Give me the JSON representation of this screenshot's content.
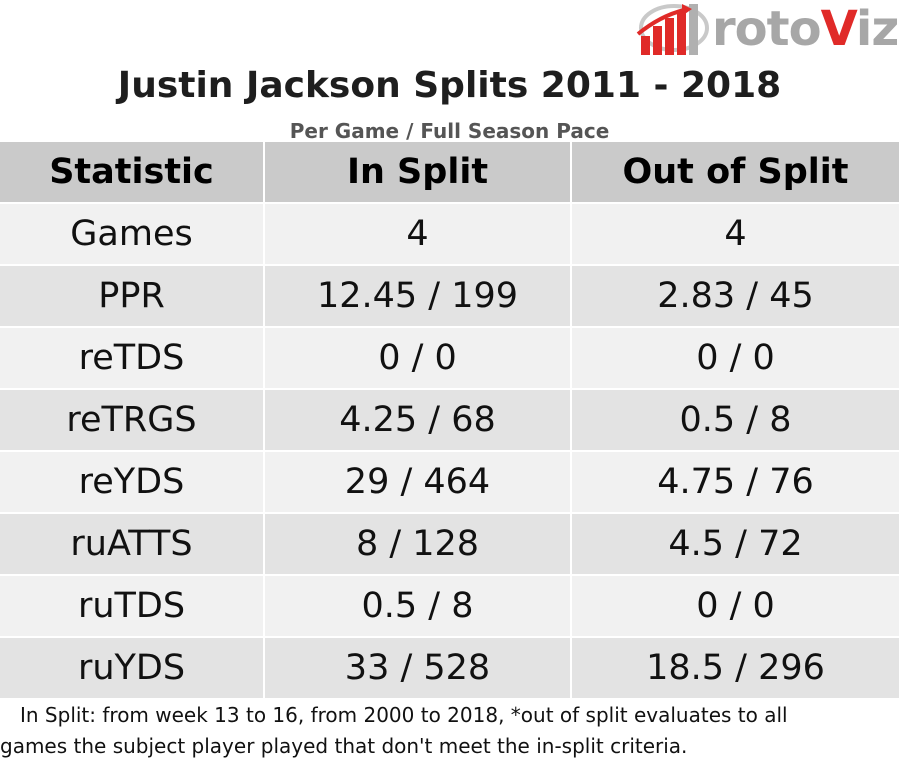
{
  "logo": {
    "text_roto": "roto",
    "text_v": "V",
    "text_iz": "iz",
    "icon": "bar-chart-arrow-icon",
    "colors": {
      "red": "#e02a28",
      "gray": "#a7a7a7"
    }
  },
  "title": "Justin Jackson Splits 2011 - 2018",
  "subtitle": "Per Game / Full Season Pace",
  "table": {
    "headers": [
      "Statistic",
      "In Split",
      "Out of Split"
    ],
    "rows": [
      [
        "Games",
        "4",
        "4"
      ],
      [
        "PPR",
        "12.45 / 199",
        "2.83 / 45"
      ],
      [
        "reTDS",
        "0 / 0",
        "0 / 0"
      ],
      [
        "reTRGS",
        "4.25 / 68",
        "0.5 / 8"
      ],
      [
        "reYDS",
        "29 / 464",
        "4.75 / 76"
      ],
      [
        "ruATTS",
        "8 / 128",
        "4.5 / 72"
      ],
      [
        "ruTDS",
        "0.5 / 8",
        "0 / 0"
      ],
      [
        "ruYDS",
        "33 / 528",
        "18.5 / 296"
      ]
    ]
  },
  "footnote": {
    "line1": "In Split: from week 13 to 16, from 2000 to 2018,  *out of split evaluates to all",
    "line2": "games the subject player played that don't meet the in-split criteria."
  },
  "colors": {
    "header_bg": "#cacaca",
    "row_light": "#f1f1f1",
    "row_dark": "#e3e3e3"
  }
}
